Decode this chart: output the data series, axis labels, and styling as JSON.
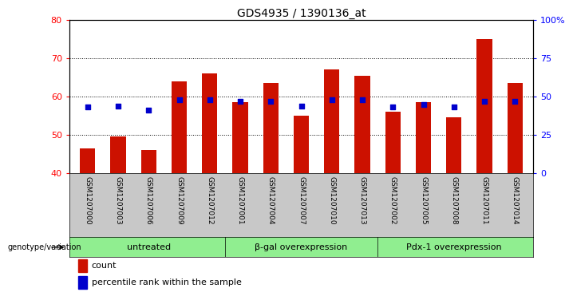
{
  "title": "GDS4935 / 1390136_at",
  "samples": [
    "GSM1207000",
    "GSM1207003",
    "GSM1207006",
    "GSM1207009",
    "GSM1207012",
    "GSM1207001",
    "GSM1207004",
    "GSM1207007",
    "GSM1207010",
    "GSM1207013",
    "GSM1207002",
    "GSM1207005",
    "GSM1207008",
    "GSM1207011",
    "GSM1207014"
  ],
  "counts": [
    46.5,
    49.5,
    46.0,
    64.0,
    66.0,
    58.5,
    63.5,
    55.0,
    67.0,
    65.5,
    56.0,
    58.5,
    54.5,
    75.0,
    63.5
  ],
  "percentile_rank": [
    43,
    44,
    41,
    48,
    48,
    47,
    47,
    44,
    48,
    48,
    43,
    45,
    43,
    47,
    47
  ],
  "ymin": 40,
  "ymax": 80,
  "yticks": [
    40,
    50,
    60,
    70,
    80
  ],
  "right_yticks": [
    0,
    25,
    50,
    75,
    100
  ],
  "groups": [
    {
      "label": "untreated",
      "start": 0,
      "end": 5
    },
    {
      "label": "β-gal overexpression",
      "start": 5,
      "end": 10
    },
    {
      "label": "Pdx-1 overexpression",
      "start": 10,
      "end": 15
    }
  ],
  "bar_color": "#cc1100",
  "dot_color": "#0000cc",
  "bar_width": 0.5,
  "plot_bg": "#ffffff",
  "group_bg": "#90ee90",
  "xlabel_area_bg": "#c8c8c8",
  "genotype_label": "genotype/variation"
}
